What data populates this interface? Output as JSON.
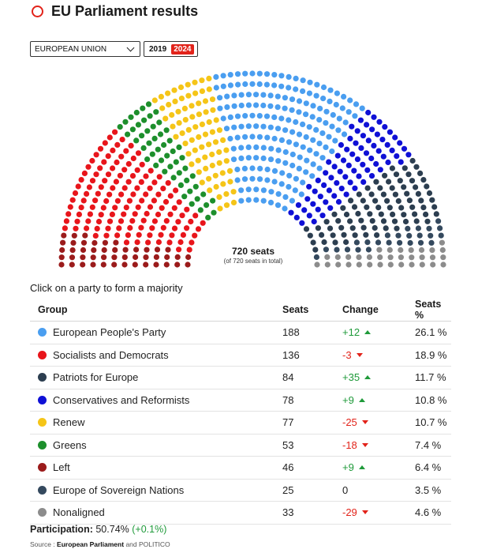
{
  "header": {
    "title": "EU Parliament results"
  },
  "controls": {
    "region": "EUROPEAN UNION",
    "years": [
      {
        "label": "2019",
        "active": false
      },
      {
        "label": "2024",
        "active": true
      }
    ]
  },
  "hemicycle": {
    "seats_label": "720 seats",
    "seats_total": "(of 720 seats in total)",
    "total_seats": 720,
    "order": [
      "Left",
      "Socialists and Democrats",
      "Greens",
      "Renew",
      "European People's Party",
      "Conservatives and Reformists",
      "Patriots for Europe",
      "Europe of Sovereign Nations",
      "Nonaligned"
    ]
  },
  "table": {
    "hint": "Click on a party to form a majority",
    "headers": {
      "group": "Group",
      "seats": "Seats",
      "change": "Change",
      "pct": "Seats %"
    },
    "rows": [
      {
        "name": "European People's Party",
        "color": "#4a9ef0",
        "seats": "188",
        "seat_count": 188,
        "change": "+12",
        "trend": "up",
        "pct": "26.1 %"
      },
      {
        "name": "Socialists and Democrats",
        "color": "#e8151b",
        "seats": "136",
        "seat_count": 136,
        "change": "-3",
        "trend": "down",
        "pct": "18.9 %"
      },
      {
        "name": "Patriots for Europe",
        "color": "#2c3e50",
        "seats": "84",
        "seat_count": 84,
        "change": "+35",
        "trend": "up",
        "pct": "11.7 %"
      },
      {
        "name": "Conservatives and Reformists",
        "color": "#0f10d6",
        "seats": "78",
        "seat_count": 78,
        "change": "+9",
        "trend": "up",
        "pct": "10.8 %"
      },
      {
        "name": "Renew",
        "color": "#f5c518",
        "seats": "77",
        "seat_count": 77,
        "change": "-25",
        "trend": "down",
        "pct": "10.7 %"
      },
      {
        "name": "Greens",
        "color": "#1d8f2c",
        "seats": "53",
        "seat_count": 53,
        "change": "-18",
        "trend": "down",
        "pct": "7.4 %"
      },
      {
        "name": "Left",
        "color": "#9b1b1b",
        "seats": "46",
        "seat_count": 46,
        "change": "+9",
        "trend": "up",
        "pct": "6.4 %"
      },
      {
        "name": "Europe of Sovereign Nations",
        "color": "#34495e",
        "seats": "25",
        "seat_count": 25,
        "change": "0",
        "trend": "none",
        "pct": "3.5 %"
      },
      {
        "name": "Nonaligned",
        "color": "#8c8c8c",
        "seats": "33",
        "seat_count": 33,
        "change": "-29",
        "trend": "down",
        "pct": "4.6 %"
      }
    ]
  },
  "footer": {
    "participation_label": "Participation:",
    "participation_value": "50.74%",
    "participation_change": "(+0.1%)",
    "source_prefix": "Source :",
    "source_main": "European Parliament",
    "source_suffix": "and POLITICO"
  }
}
